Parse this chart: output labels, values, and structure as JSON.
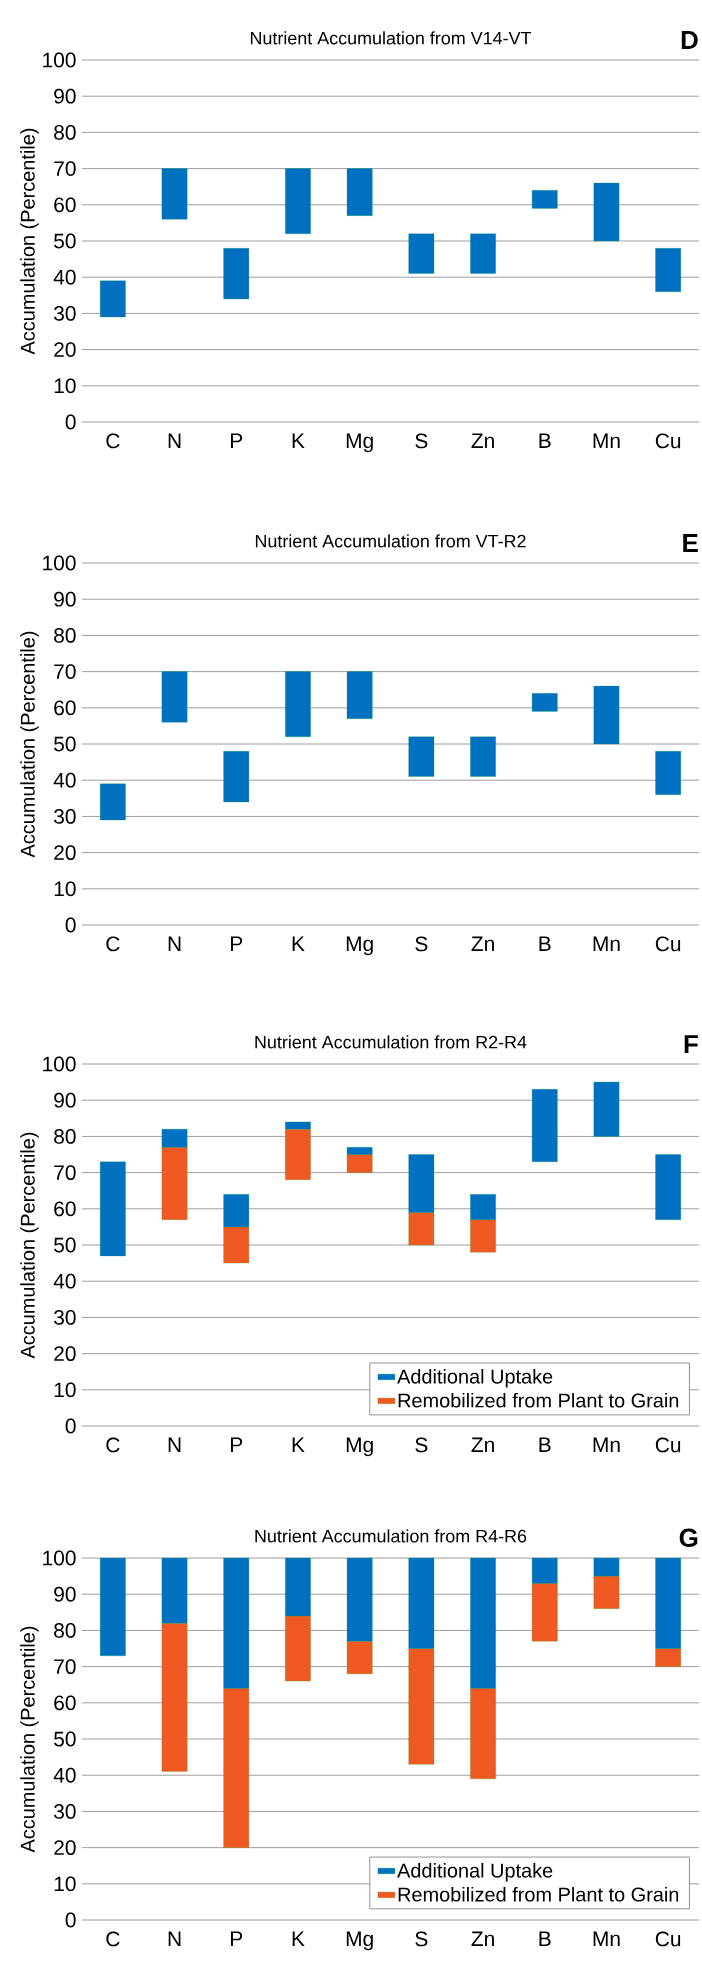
{
  "chart_data": [
    {
      "type": "bar",
      "title": "Nutrient Accumulation from V14-VT",
      "annotations": [
        "D"
      ],
      "ylabel": "Accumulation (Percentile)",
      "categories": [
        "C",
        "N",
        "P",
        "K",
        "Mg",
        "S",
        "Zn",
        "B",
        "Mn",
        "Cu"
      ],
      "ylim": [
        0,
        100
      ],
      "yticks": [
        0,
        10,
        20,
        30,
        40,
        50,
        60,
        70,
        80,
        90,
        100
      ],
      "grid": "y",
      "series": [
        {
          "color": "#0070c0",
          "base": [
            29,
            56,
            34,
            52,
            57,
            41,
            41,
            59,
            50,
            36
          ],
          "values": [
            10,
            14,
            14,
            18,
            13,
            11,
            11,
            5,
            16,
            12
          ]
        }
      ]
    },
    {
      "type": "bar",
      "title": "Nutrient Accumulation from VT-R2",
      "annotations": [
        "E"
      ],
      "ylabel": "Accumulation (Percentile)",
      "categories": [
        "C",
        "N",
        "P",
        "K",
        "Mg",
        "S",
        "Zn",
        "B",
        "Mn",
        "Cu"
      ],
      "ylim": [
        0,
        100
      ],
      "yticks": [
        0,
        10,
        20,
        30,
        40,
        50,
        60,
        70,
        80,
        90,
        100
      ],
      "grid": "y",
      "series": [
        {
          "color": "#0070c0",
          "base": [
            29,
            56,
            34,
            52,
            57,
            41,
            41,
            59,
            50,
            36
          ],
          "values": [
            10,
            14,
            14,
            18,
            13,
            11,
            11,
            5,
            16,
            12
          ]
        }
      ]
    },
    {
      "type": "bar",
      "title": "Nutrient Accumulation from R2-R4",
      "annotations": [
        "F"
      ],
      "ylabel": "Accumulation (Percentile)",
      "categories": [
        "C",
        "N",
        "P",
        "K",
        "Mg",
        "S",
        "Zn",
        "B",
        "Mn",
        "Cu"
      ],
      "ylim": [
        0,
        100
      ],
      "yticks": [
        0,
        10,
        20,
        30,
        40,
        50,
        60,
        70,
        80,
        90,
        100
      ],
      "grid": "y",
      "stacked": true,
      "legend": "bottom right",
      "series": [
        {
          "name": "Remobilized from Plant to Grain",
          "color": "#f05a22",
          "base": [
            null,
            57,
            45,
            68,
            70,
            50,
            48,
            null,
            null,
            null
          ],
          "values": [
            null,
            20,
            10,
            14,
            5,
            9,
            9,
            null,
            null,
            null
          ]
        },
        {
          "name": "Additional Uptake",
          "color": "#0070c0",
          "base": [
            47,
            null,
            null,
            null,
            null,
            null,
            null,
            73,
            80,
            57
          ],
          "values": [
            26,
            5,
            9,
            2,
            2,
            16,
            7,
            20,
            15,
            18
          ]
        }
      ]
    },
    {
      "type": "bar",
      "title": "Nutrient Accumulation from R4-R6",
      "annotations": [
        "G"
      ],
      "ylabel": "Accumulation (Percentile)",
      "categories": [
        "C",
        "N",
        "P",
        "K",
        "Mg",
        "S",
        "Zn",
        "B",
        "Mn",
        "Cu"
      ],
      "ylim": [
        0,
        100
      ],
      "yticks": [
        0,
        10,
        20,
        30,
        40,
        50,
        60,
        70,
        80,
        90,
        100
      ],
      "grid": "y",
      "stacked": true,
      "legend": "bottom right",
      "series": [
        {
          "name": "Remobilized from Plant to Grain",
          "color": "#f05a22",
          "base": [
            null,
            41,
            20,
            66,
            68,
            43,
            39,
            77,
            86,
            70
          ],
          "values": [
            null,
            41,
            44,
            18,
            9,
            32,
            25,
            16,
            9,
            5
          ]
        },
        {
          "name": "Additional Uptake",
          "color": "#0070c0",
          "base": [
            73,
            null,
            null,
            null,
            null,
            null,
            null,
            null,
            null,
            null
          ],
          "values": [
            27,
            18,
            36,
            16,
            23,
            25,
            36,
            7,
            5,
            25
          ]
        }
      ]
    }
  ]
}
